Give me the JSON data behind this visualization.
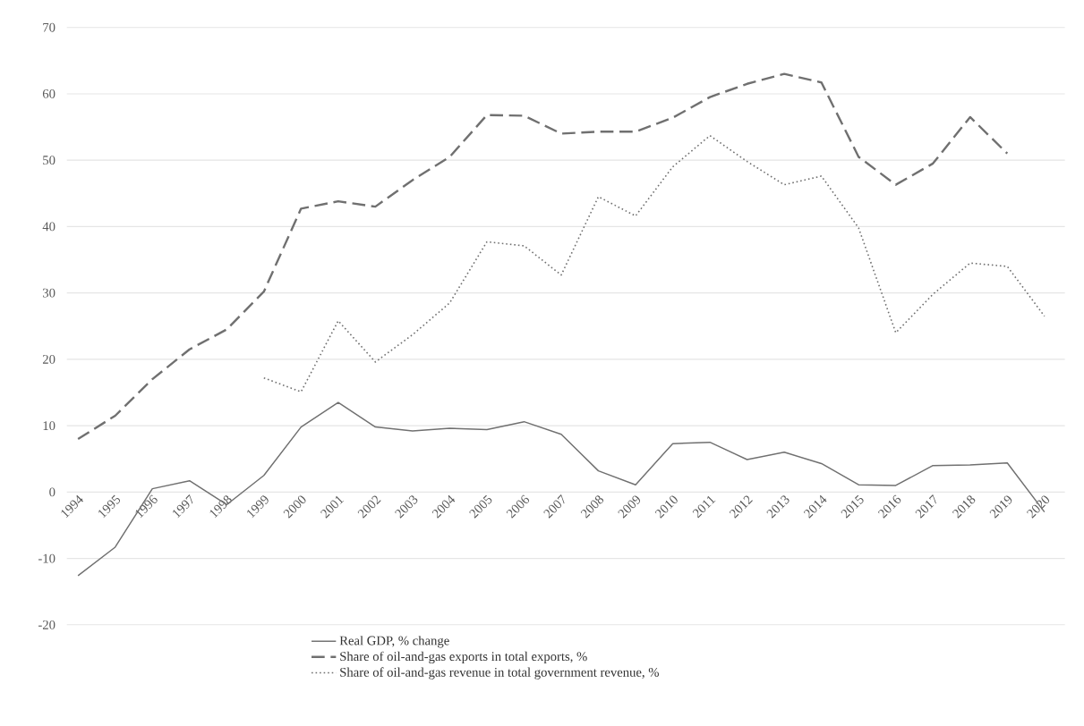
{
  "chart_data": {
    "type": "line",
    "categories": [
      "1994",
      "1995",
      "1996",
      "1997",
      "1998",
      "1999",
      "2000",
      "2001",
      "2002",
      "2003",
      "2004",
      "2005",
      "2006",
      "2007",
      "2008",
      "2009",
      "2010",
      "2011",
      "2012",
      "2013",
      "2014",
      "2015",
      "2016",
      "2017",
      "2018",
      "2019",
      "2020"
    ],
    "series": [
      {
        "name": "Real GDP, % change",
        "color": "#707070",
        "line_style": "solid",
        "values": [
          -12.6,
          -8.3,
          0.5,
          1.7,
          -1.9,
          2.5,
          9.8,
          13.5,
          9.8,
          9.2,
          9.6,
          9.4,
          10.6,
          8.7,
          3.2,
          1.1,
          7.3,
          7.5,
          4.9,
          6.0,
          4.3,
          1.1,
          1.0,
          4.0,
          4.1,
          4.4,
          -3.0
        ]
      },
      {
        "name": "Share of oil-and-gas exports in total exports, %",
        "color": "#707070",
        "line_style": "dashed",
        "values": [
          8,
          11.5,
          17,
          21.5,
          24.5,
          30.2,
          42.7,
          43.8,
          43.0,
          47,
          50.5,
          56.8,
          56.7,
          54,
          54.3,
          54.3,
          56.4,
          59.5,
          61.5,
          63,
          61.7,
          50.5,
          46.3,
          49.5,
          56.5,
          51,
          null
        ]
      },
      {
        "name": "Share of oil-and-gas revenue in total government revenue, %",
        "color": "#707070",
        "line_style": "dotted",
        "values": [
          null,
          null,
          null,
          null,
          null,
          17.2,
          15.1,
          25.8,
          19.6,
          23.7,
          28.5,
          37.7,
          37.1,
          32.7,
          44.5,
          41.6,
          49,
          53.7,
          49.8,
          46.3,
          47.6,
          39.8,
          24.0,
          29.8,
          34.5,
          34,
          26.5
        ]
      }
    ],
    "ylim": [
      -20,
      70
    ],
    "yticks": [
      -20,
      -10,
      0,
      10,
      20,
      30,
      40,
      50,
      60,
      70
    ],
    "grid": "y",
    "legend": "bottom"
  }
}
